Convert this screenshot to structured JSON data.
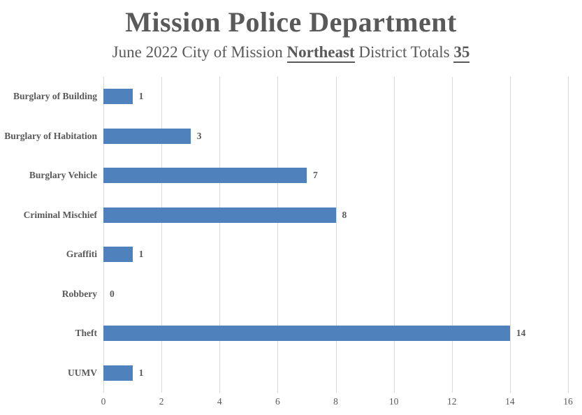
{
  "title": "Mission Police Department",
  "subtitle": {
    "prefix": "June 2022 City of Mission ",
    "district": "Northeast",
    "middle": " District Totals ",
    "total": "35"
  },
  "chart_data": {
    "type": "bar",
    "orientation": "horizontal",
    "title": "Mission Police Department",
    "subtitle": "June 2022 City of Mission Northeast District Totals 35",
    "categories": [
      "Burglary of Building",
      "Burglary of Habitation",
      "Burglary Vehicle",
      "Criminal Mischief",
      "Graffiti",
      "Robbery",
      "Theft",
      "UUMV"
    ],
    "values": [
      1,
      3,
      7,
      8,
      1,
      0,
      14,
      1
    ],
    "total": 35,
    "xlim": [
      0,
      16
    ],
    "xticks": [
      0,
      2,
      4,
      6,
      8,
      10,
      12,
      14,
      16
    ],
    "grid": true,
    "legend": false,
    "data_labels": true,
    "bar_color": "#4f81bd",
    "gridline_color": "#d9d9d9",
    "text_color": "#595959",
    "background_color": "#ffffff"
  }
}
